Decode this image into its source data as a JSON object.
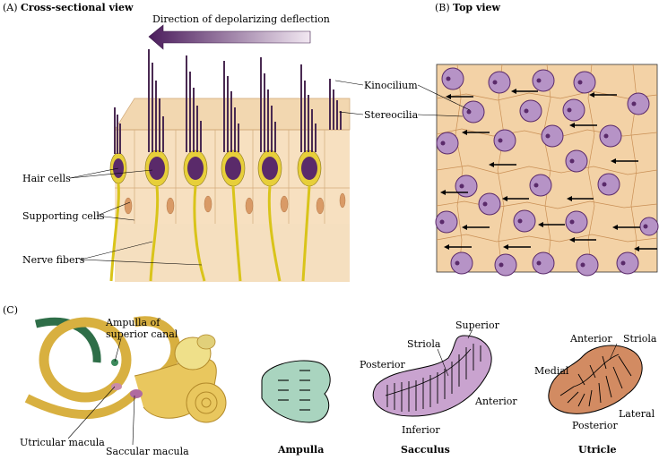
{
  "panelA": {
    "letter": "(A)",
    "title": "Cross-sectional view",
    "arrow_label": "Direction of depolarizing deflection",
    "labels": {
      "kinocilium": "Kinocilium",
      "stereocilia": "Stereocilia",
      "hair_cells": "Hair cells",
      "supporting_cells": "Supporting cells",
      "nerve_fibers": "Nerve fibers"
    }
  },
  "panelB": {
    "letter": "(B)",
    "title": "Top view"
  },
  "panelC": {
    "letter": "(C)",
    "labels": {
      "ampulla_line1": "Ampulla of",
      "ampulla_line2": "superior canal",
      "utricular_macula": "Utricular macula",
      "saccular_macula": "Saccular macula"
    },
    "ampulla_caption": "Ampulla",
    "sacculus": {
      "caption": "Sacculus",
      "superior": "Superior",
      "striola": "Striola",
      "posterior": "Posterior",
      "anterior": "Anterior",
      "inferior": "Inferior"
    },
    "utricle": {
      "caption": "Utricle",
      "anterior": "Anterior",
      "striola": "Striola",
      "medial": "Medial",
      "lateral": "Lateral",
      "posterior": "Posterior"
    }
  },
  "colors": {
    "epithelium": "#f4d9b4",
    "cell_outline": "#c8955a",
    "hair_cell": "#5a2a6a",
    "nerve": "#d9c41a",
    "ampulla_fill": "#a9d4bf",
    "sacculus_fill": "#c9a3cf",
    "utricle_fill": "#d28b62",
    "labyrinth": "#e6c45a"
  }
}
